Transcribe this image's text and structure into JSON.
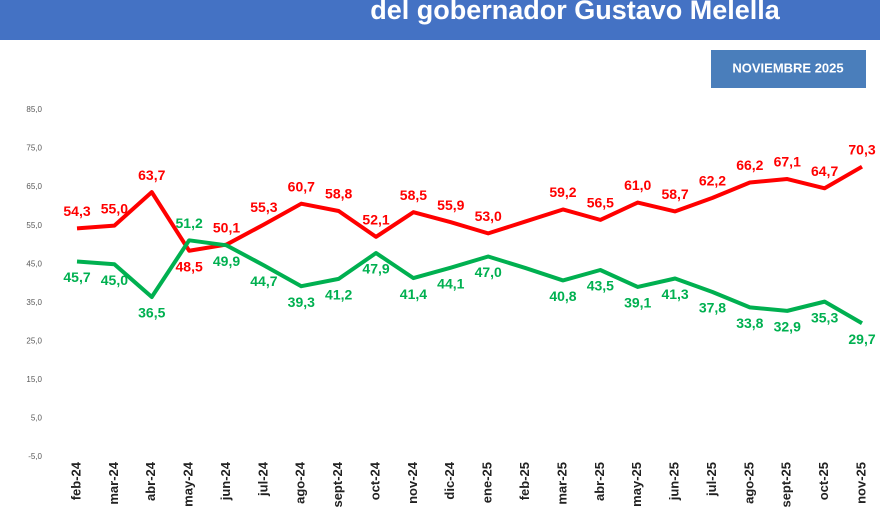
{
  "chart_data": {
    "type": "line",
    "title": "del gobernador Gustavo Melella",
    "subtitle": "NOVIEMBRE 2025",
    "categories": [
      "feb-24",
      "mar-24",
      "abr-24",
      "may-24",
      "jun-24",
      "jul-24",
      "ago-24",
      "sept-24",
      "oct-24",
      "nov-24",
      "dic-24",
      "ene-25",
      "feb-25",
      "mar-25",
      "abr-25",
      "may-25",
      "jun-25",
      "jul-25",
      "ago-25",
      "sept-25",
      "oct-25",
      "nov-25"
    ],
    "series": [
      {
        "color": "#ff0000",
        "values": [
          54.3,
          55.0,
          63.7,
          48.5,
          50.1,
          55.3,
          60.7,
          58.8,
          52.1,
          58.5,
          55.9,
          53.0,
          56.1,
          59.2,
          56.5,
          61.0,
          58.7,
          62.2,
          66.2,
          67.1,
          64.7,
          70.3
        ],
        "value_labels": [
          "54,3",
          "55,0",
          "63,7",
          "48,5",
          "50,1",
          "55,3",
          "60,7",
          "58,8",
          "52,1",
          "58,5",
          "55,9",
          "53,0",
          null,
          "59,2",
          "56,5",
          "61,0",
          "58,7",
          "62,2",
          "66,2",
          "67,1",
          "64,7",
          "70,3"
        ]
      },
      {
        "color": "#00b050",
        "values": [
          45.7,
          45.0,
          36.5,
          51.2,
          49.9,
          44.7,
          39.3,
          41.2,
          47.9,
          41.4,
          44.1,
          47.0,
          44.0,
          40.8,
          43.5,
          39.1,
          41.3,
          37.8,
          33.8,
          32.9,
          35.3,
          29.7
        ],
        "value_labels": [
          "45,7",
          "45,0",
          "36,5",
          "51,2",
          "49,9",
          "44,7",
          "39,3",
          "41,2",
          "47,9",
          "41,4",
          "44,1",
          "47,0",
          null,
          "40,8",
          "43,5",
          "39,1",
          "41,3",
          "37,8",
          "33,8",
          "32,9",
          "35,3",
          "29,7"
        ]
      }
    ],
    "ylim": [
      -5,
      85
    ],
    "yticks": [
      {
        "value": -5,
        "label": "-5,0"
      },
      {
        "value": 5,
        "label": "5,0"
      },
      {
        "value": 15,
        "label": "15,0"
      },
      {
        "value": 25,
        "label": "25,0"
      },
      {
        "value": 35,
        "label": "35,0"
      },
      {
        "value": 45,
        "label": "45,0"
      },
      {
        "value": 55,
        "label": "55,0"
      },
      {
        "value": 65,
        "label": "65,0"
      },
      {
        "value": 75,
        "label": "75,0"
      },
      {
        "value": 85,
        "label": "85,0"
      }
    ]
  }
}
